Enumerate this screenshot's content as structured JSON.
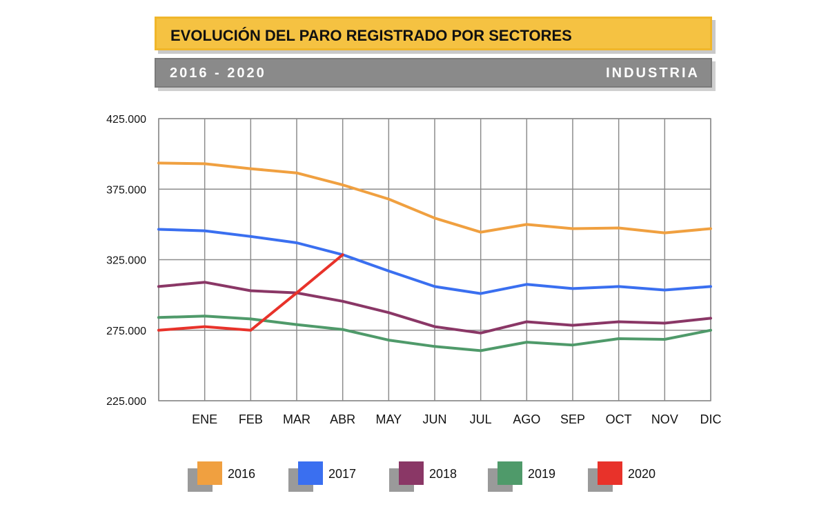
{
  "header": {
    "title": "EVOLUCIÓN DEL PARO REGISTRADO POR SECTORES",
    "period": "2016 - 2020",
    "sector": "INDUSTRIA"
  },
  "chart_data": {
    "type": "line",
    "title": "EVOLUCIÓN DEL PARO REGISTRADO POR SECTORES",
    "xlabel": "",
    "ylabel": "",
    "ylim": [
      225000,
      425000
    ],
    "yticks": [
      "225.000",
      "275.000",
      "325.000",
      "375.000",
      "425.000"
    ],
    "categories": [
      "",
      "ENE",
      "FEB",
      "MAR",
      "ABR",
      "MAY",
      "JUN",
      "JUL",
      "AGO",
      "SEP",
      "OCT",
      "NOV",
      "DIC"
    ],
    "grid": true,
    "legend": "bottom",
    "series": [
      {
        "name": "2016",
        "color": "#f0a040",
        "values": [
          393500,
          393000,
          389500,
          386500,
          378000,
          368000,
          354500,
          344500,
          350000,
          347000,
          347500,
          344000,
          347000
        ]
      },
      {
        "name": "2017",
        "color": "#3a6ff0",
        "values": [
          346500,
          345500,
          341500,
          337000,
          328500,
          317000,
          306000,
          301000,
          307500,
          304500,
          306000,
          303500,
          306000
        ]
      },
      {
        "name": "2018",
        "color": "#8a3766",
        "values": [
          306000,
          309000,
          303000,
          301500,
          295500,
          287500,
          277500,
          273000,
          281000,
          278500,
          281000,
          280000,
          283500
        ]
      },
      {
        "name": "2019",
        "color": "#4f9a6a",
        "values": [
          284000,
          285000,
          283000,
          279000,
          275500,
          268000,
          263500,
          260500,
          266500,
          264500,
          269000,
          268500,
          275000
        ]
      },
      {
        "name": "2020",
        "color": "#e8322a",
        "values": [
          275000,
          277500,
          275000,
          301500,
          328500,
          null,
          null,
          null,
          null,
          null,
          null,
          null,
          null
        ]
      }
    ]
  }
}
